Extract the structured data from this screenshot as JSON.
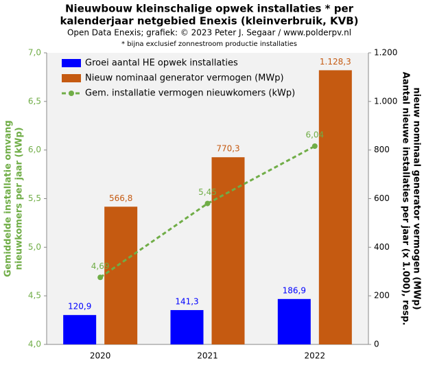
{
  "chart_data": {
    "type": "bar_line",
    "title": [
      "Nieuwbouw kleinschalige  opwek installaties  * per",
      "kalenderjaar netgebied Enexis (kleinverbruik, KVB)"
    ],
    "subtitle": "Open Data Enexis;  grafiek: © 2023 Peter J. Segaar / www.polderpv.nl",
    "note": "* bijna exclusief zonnestroom productie installaties",
    "categories": [
      "2020",
      "2021",
      "2022"
    ],
    "series": [
      {
        "name": "Groei aantal HE opwek installaties",
        "type": "bar",
        "axis": "y2",
        "color": "#0000ff",
        "values": [
          120.9,
          141.3,
          186.9
        ],
        "value_labels": [
          "120,9",
          "141,3",
          "186,9"
        ]
      },
      {
        "name": "Nieuw nominaal generator vermogen (MWp)",
        "type": "bar",
        "axis": "y2",
        "color": "#c55a11",
        "values": [
          566.8,
          770.3,
          1128.3
        ],
        "value_labels": [
          "566,8",
          "770,3",
          "1.128,3"
        ]
      },
      {
        "name": "Gem. installatie vermogen nieuwkomers (kWp)",
        "type": "line",
        "axis": "y",
        "color": "#70ad47",
        "values": [
          4.69,
          5.45,
          6.04
        ],
        "value_labels": [
          "4,69",
          "5,45",
          "6,04"
        ]
      }
    ],
    "ylabel": [
      "Gemiddelde installatie omvang",
      "nieuwkomers  per jaar (kWp)"
    ],
    "y2label": [
      "Aantal nieuwe installaties per jaar (x 1.000), resp.",
      "nieuw nominaal generator vermogen (MWp)"
    ],
    "ylim": [
      4.0,
      7.0
    ],
    "yticks": [
      {
        "value": 4.0,
        "label": "4,0"
      },
      {
        "value": 4.5,
        "label": "4,5"
      },
      {
        "value": 5.0,
        "label": "5,0"
      },
      {
        "value": 5.5,
        "label": "5,5"
      },
      {
        "value": 6.0,
        "label": "6,0"
      },
      {
        "value": 6.5,
        "label": "6,5"
      },
      {
        "value": 7.0,
        "label": "7,0"
      }
    ],
    "y2lim": [
      0,
      1200
    ],
    "y2ticks": [
      0,
      200,
      400,
      600,
      800,
      {
        "value": 1000,
        "label": "1.000"
      },
      {
        "value": 1200,
        "label": "1.200"
      }
    ],
    "ycolor": "#70ad47",
    "legend": "upper left"
  }
}
